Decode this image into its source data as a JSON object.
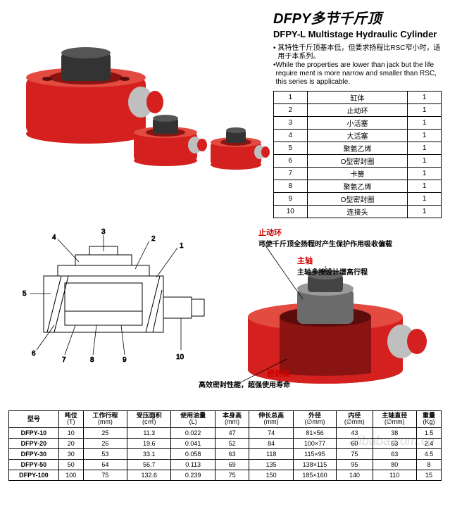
{
  "header": {
    "title_zh": "DFPY多节千斤顶",
    "title_en": "DFPY-L Multistage Hydraulic Cylinder",
    "bullet_zh": "其特性千斤顶基本低，但要求扬程比RSC窄小时，适用于本系列。",
    "bullet_en": "While the properties are lower than jack but the life require ment is more narrow and smaller than RSC, this series is applicable."
  },
  "colors": {
    "jack_body": "#d4201e",
    "jack_dark": "#8a1412",
    "metal": "#bfbfbf",
    "metal_dark": "#6b6b6b",
    "line": "#000000",
    "callout": "#c00000"
  },
  "parts": [
    {
      "no": "1",
      "name": "缸体",
      "q": "1"
    },
    {
      "no": "2",
      "name": "止动环",
      "q": "1"
    },
    {
      "no": "3",
      "name": "小活塞",
      "q": "1"
    },
    {
      "no": "4",
      "name": "大活塞",
      "q": "1"
    },
    {
      "no": "5",
      "name": "聚氨乙烯",
      "q": "1"
    },
    {
      "no": "6",
      "name": "O型密封圈",
      "q": "1"
    },
    {
      "no": "7",
      "name": "卡簧",
      "q": "1"
    },
    {
      "no": "8",
      "name": "聚氨乙烯",
      "q": "1"
    },
    {
      "no": "9",
      "name": "O型密封圈",
      "q": "1"
    },
    {
      "no": "10",
      "name": "连接头",
      "q": "1"
    }
  ],
  "diagram": {
    "labels": [
      "1",
      "2",
      "3",
      "4",
      "5",
      "6",
      "7",
      "8",
      "9",
      "10"
    ],
    "callouts": {
      "stopring_hd": "止动环",
      "stopring_tx": "可使千斤顶全扬程时产生保护作用吸收偏载",
      "shaft_hd": "主轴",
      "shaft_tx": "主轴多按设计增高行程",
      "seal_hd": "密封圈",
      "seal_tx": "高效密封性能，超强使用寿命"
    }
  },
  "specs": {
    "head": [
      {
        "t": "型号",
        "u": ""
      },
      {
        "t": "吨位",
        "u": "(T)"
      },
      {
        "t": "工作行程",
        "u": "(mm)"
      },
      {
        "t": "受压面积",
        "u": "(c㎡)"
      },
      {
        "t": "使用油量",
        "u": "(L)"
      },
      {
        "t": "本身高",
        "u": "(mm)"
      },
      {
        "t": "伸长总高",
        "u": "(mm)"
      },
      {
        "t": "外径",
        "u": "(∅mm)"
      },
      {
        "t": "内径",
        "u": "(∅mm)"
      },
      {
        "t": "主轴直径",
        "u": "(∅mm)"
      },
      {
        "t": "重量",
        "u": "(Kg)"
      }
    ],
    "rows": [
      [
        "DFPY-10",
        "10",
        "25",
        "11.3",
        "0.022",
        "47",
        "74",
        "81×56",
        "43",
        "38",
        "1.5"
      ],
      [
        "DFPY-20",
        "20",
        "26",
        "19.6",
        "0.041",
        "52",
        "84",
        "100×77",
        "60",
        "53",
        "2.4"
      ],
      [
        "DFPY-30",
        "30",
        "53",
        "33.1",
        "0.058",
        "63",
        "118",
        "115×95",
        "75",
        "63",
        "4.5"
      ],
      [
        "DFPY-50",
        "50",
        "64",
        "56.7",
        "0.113",
        "69",
        "135",
        "138×115",
        "95",
        "80",
        "8"
      ],
      [
        "DFPY-100",
        "100",
        "75",
        "132.6",
        "0.239",
        "75",
        "150",
        "185×160",
        "140",
        "110",
        "15"
      ]
    ]
  },
  "watermark": "alibaba.com.cn"
}
